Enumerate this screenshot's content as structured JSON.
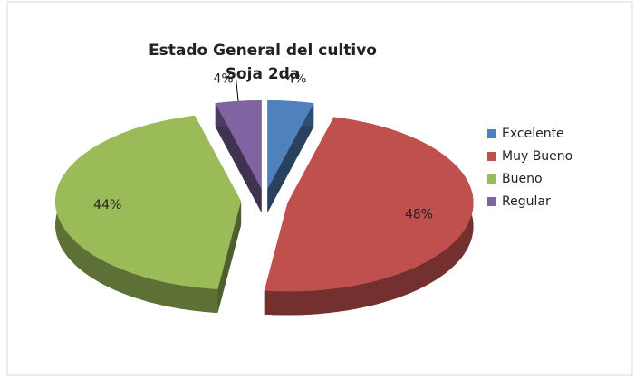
{
  "chart_data": {
    "type": "pie3d",
    "title": [
      "Estado General del cultivo",
      "Soja 2da"
    ],
    "categories": [
      "Excelente",
      "Muy Bueno",
      "Bueno",
      "Regular"
    ],
    "values": [
      4,
      48,
      44,
      4
    ],
    "value_labels": [
      "4%",
      "48%",
      "44%",
      "4%"
    ],
    "colors": [
      "#4f81bd",
      "#c0504d",
      "#9bbb59",
      "#8064a2"
    ],
    "legend": "right"
  }
}
